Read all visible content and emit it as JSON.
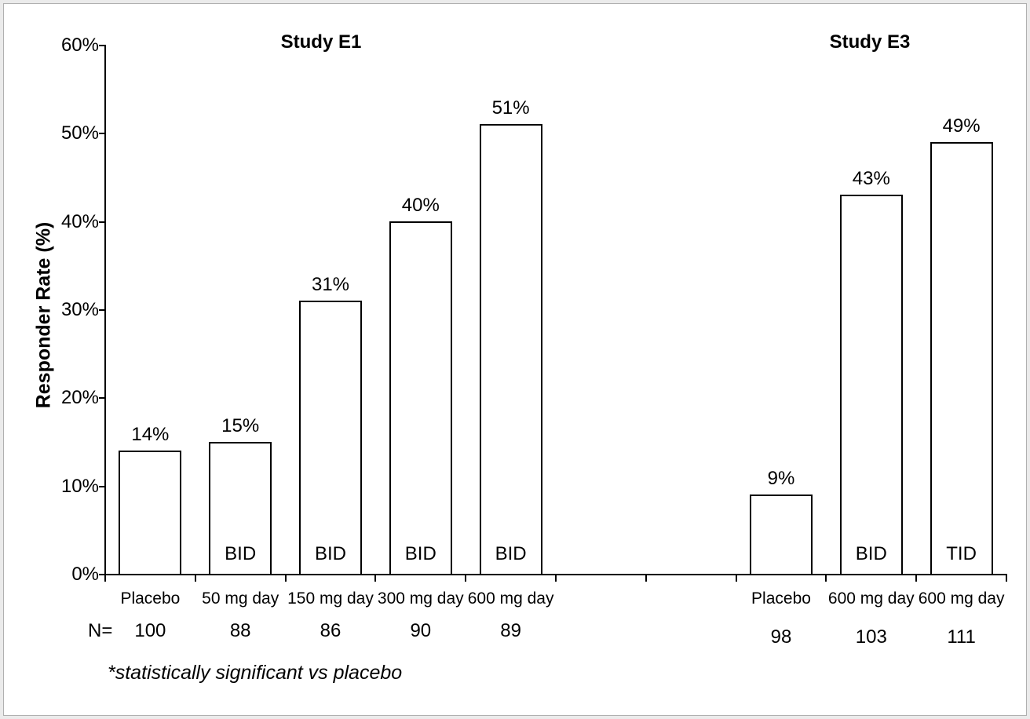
{
  "frame": {
    "outer_color": "#ebebeb",
    "line_color": "#b0b0b0",
    "background": "#ffffff"
  },
  "chart_data": {
    "type": "bar",
    "ylabel": "Responder Rate (%)",
    "ylim": [
      0,
      60
    ],
    "ytick_labels": [
      "0%",
      "10%",
      "20%",
      "30%",
      "40%",
      "50%",
      "60%"
    ],
    "grid": false,
    "legend": "none",
    "total_slots": 10,
    "axis_color": "#000000",
    "bar_fill": "#ffffff",
    "bar_border": "#000000",
    "n_prefix": "N=",
    "footnote": "*statistically significant vs placebo",
    "groups": [
      {
        "title": "Study E1",
        "start_slot": 0,
        "bars": [
          {
            "category": "Placebo",
            "value": 14,
            "value_label": "14%",
            "n": "100",
            "regimen": ""
          },
          {
            "category": "50 mg day",
            "value": 15,
            "value_label": "15%",
            "n": "88",
            "regimen": "BID"
          },
          {
            "category": "150 mg day",
            "value": 31,
            "value_label": "31%",
            "n": "86",
            "regimen": "BID"
          },
          {
            "category": "300 mg day",
            "value": 40,
            "value_label": "40%",
            "n": "90",
            "regimen": "BID"
          },
          {
            "category": "600 mg day",
            "value": 51,
            "value_label": "51%",
            "n": "89",
            "regimen": "BID"
          }
        ]
      },
      {
        "title": "Study E3",
        "start_slot": 7,
        "bars": [
          {
            "category": "Placebo",
            "value": 9,
            "value_label": "9%",
            "n": "98",
            "regimen": ""
          },
          {
            "category": "600 mg day",
            "value": 43,
            "value_label": "43%",
            "n": "103",
            "regimen": "BID"
          },
          {
            "category": "600 mg day",
            "value": 49,
            "value_label": "49%",
            "n": "111",
            "regimen": "TID"
          }
        ]
      }
    ]
  }
}
